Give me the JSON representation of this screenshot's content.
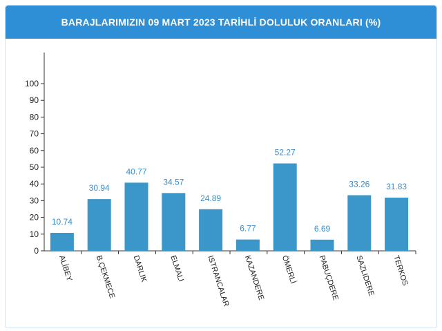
{
  "header": {
    "title": "BARAJLARIMIZIN 09 MART 2023 TARİHLİ DOLULUK ORANLARI (%)"
  },
  "colors": {
    "header_bg": "#2e8fd6",
    "bar": "#3b96c9",
    "data_label": "#3a8cc8"
  },
  "chart_data": {
    "type": "bar",
    "title": "BARAJLARIMIZIN 09 MART 2023 TARİHLİ DOLULUK ORANLARI (%)",
    "categories": [
      "ALİBEY",
      "B.ÇEKMECE",
      "DARLIK",
      "ELMALI",
      "ISTRANCALAR",
      "KAZANDERE",
      "ÖMERLİ",
      "PABUÇDERE",
      "SAZLIDERE",
      "TERKOS"
    ],
    "values": [
      10.74,
      30.94,
      40.77,
      34.57,
      24.89,
      6.77,
      52.27,
      6.69,
      33.26,
      31.83
    ],
    "value_labels": [
      "10.74",
      "30.94",
      "40.77",
      "34.57",
      "24.89",
      "6.77",
      "52.27",
      "6.69",
      "33.26",
      "31.83"
    ],
    "yticks": [
      "0",
      "10",
      "20",
      "30",
      "40",
      "50",
      "60",
      "70",
      "80",
      "90",
      "100"
    ],
    "ylim": [
      0,
      100
    ],
    "xlabel": "",
    "ylabel": "",
    "grid": false,
    "legend": "none"
  }
}
